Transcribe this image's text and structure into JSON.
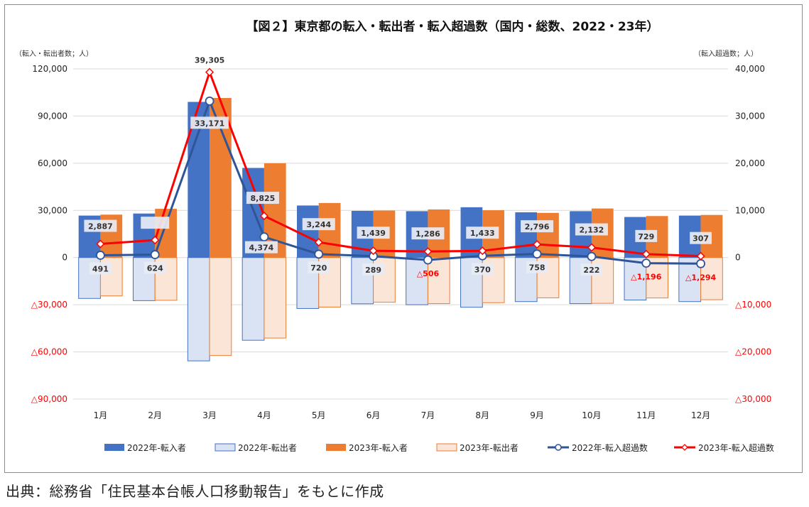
{
  "source_note": "出典：総務省「住民基本台帳人口移動報告」をもとに作成",
  "chart_data": {
    "type": "bar+line",
    "title": "【図２】東京都の転入・転出者・転入超過数（国内・総数、2022・23年）",
    "left_axis_label": "（転入・転出者数；人）",
    "right_axis_label": "（転入超過数；人）",
    "categories": [
      "1月",
      "2月",
      "3月",
      "4月",
      "5月",
      "6月",
      "7月",
      "8月",
      "9月",
      "10月",
      "11月",
      "12月"
    ],
    "left_axis": {
      "min": -90000,
      "max": 120000,
      "ticks": [
        120000,
        90000,
        60000,
        30000,
        0,
        -30000,
        -60000,
        -90000
      ],
      "tick_labels": [
        "120,000",
        "90,000",
        "60,000",
        "30,000",
        "0",
        "△30,000",
        "△60,000",
        "△90,000"
      ]
    },
    "right_axis": {
      "min": -30000,
      "max": 40000,
      "ticks": [
        40000,
        30000,
        20000,
        10000,
        0,
        -10000,
        -20000,
        -30000
      ],
      "tick_labels": [
        "40,000",
        "30,000",
        "20,000",
        "10,000",
        "0",
        "△10,000",
        "△20,000",
        "△30,000"
      ]
    },
    "series": [
      {
        "name": "2022年-転入者",
        "kind": "bar",
        "axis": "left",
        "color": "#4472c4",
        "values": [
          26700,
          28000,
          99000,
          57000,
          33100,
          29700,
          29500,
          32000,
          28800,
          29500,
          25800,
          26700
        ]
      },
      {
        "name": "2022年-転出者",
        "kind": "bar",
        "axis": "left",
        "color": "#dae3f3",
        "stroke": "#4472c4",
        "values": [
          -26000,
          -27400,
          -65700,
          -52600,
          -32400,
          -29400,
          -30000,
          -31600,
          -28000,
          -29300,
          -27000,
          -28000
        ]
      },
      {
        "name": "2023年-転入者",
        "kind": "bar",
        "axis": "left",
        "color": "#ed7d31",
        "values": [
          27300,
          31000,
          101500,
          60000,
          34700,
          29900,
          30600,
          30100,
          28400,
          31200,
          26400,
          27100
        ]
      },
      {
        "name": "2023年-転出者",
        "kind": "bar",
        "axis": "left",
        "color": "#fbe5d6",
        "stroke": "#ed7d31",
        "values": [
          -24400,
          -27200,
          -62300,
          -51200,
          -31500,
          -28400,
          -29300,
          -28700,
          -25600,
          -29100,
          -25700,
          -26800
        ]
      },
      {
        "name": "2022年-転入超過数",
        "kind": "line",
        "axis": "right",
        "color": "#2f5597",
        "values": [
          491,
          624,
          33171,
          4374,
          720,
          289,
          -506,
          370,
          758,
          222,
          -1196,
          -1294
        ],
        "labels": [
          "491",
          "624",
          "33,171",
          "4,374",
          "720",
          "289",
          "△506",
          "370",
          "758",
          "222",
          "△1,196",
          "△1,294"
        ]
      },
      {
        "name": "2023年-転入超過数",
        "kind": "line",
        "axis": "right",
        "color": "#ff0000",
        "values": [
          2887,
          3700,
          39305,
          8825,
          3244,
          1439,
          1286,
          1433,
          2796,
          2132,
          729,
          307
        ],
        "labels": [
          "2,887",
          "",
          "39,305",
          "8,825",
          "3,244",
          "1,439",
          "1,286",
          "1,433",
          "2,796",
          "2,132",
          "729",
          "307"
        ]
      }
    ],
    "legend_position": "bottom"
  }
}
